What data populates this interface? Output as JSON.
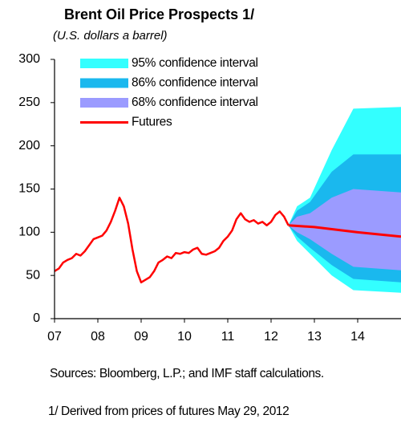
{
  "chart_data": {
    "type": "line",
    "title": "Brent Oil Price Prospects  1/",
    "subtitle": "(U.S. dollars a barrel)",
    "xlim": [
      2007,
      2015
    ],
    "xticks": [
      {
        "value": 2007,
        "label": "07"
      },
      {
        "value": 2008,
        "label": "08"
      },
      {
        "value": 2009,
        "label": "09"
      },
      {
        "value": 2010,
        "label": "10"
      },
      {
        "value": 2011,
        "label": "11"
      },
      {
        "value": 2012,
        "label": "12"
      },
      {
        "value": 2013,
        "label": "13"
      },
      {
        "value": 2014,
        "label": "14"
      }
    ],
    "ylim": [
      0,
      300
    ],
    "yticks": [
      0,
      50,
      100,
      150,
      200,
      250,
      300
    ],
    "grid": false,
    "legend": "upper left",
    "bands": [
      {
        "name": "95% confidence interval",
        "color": "#33ffff",
        "x": [
          2012.4,
          2012.6,
          2012.9,
          2013.4,
          2013.9,
          2015
        ],
        "upper": [
          108,
          130,
          140,
          195,
          243,
          245
        ],
        "lower": [
          108,
          90,
          75,
          50,
          33,
          30
        ]
      },
      {
        "name": "86% confidence interval",
        "color": "#1ab8ee",
        "x": [
          2012.4,
          2012.6,
          2012.9,
          2013.4,
          2013.9,
          2015
        ],
        "upper": [
          108,
          125,
          135,
          170,
          190,
          190
        ],
        "lower": [
          108,
          95,
          82,
          62,
          46,
          42
        ]
      },
      {
        "name": "68% confidence interval",
        "color": "#9b9bff",
        "x": [
          2012.4,
          2012.6,
          2012.9,
          2013.4,
          2013.9,
          2015
        ],
        "upper": [
          108,
          118,
          122,
          140,
          150,
          146
        ],
        "lower": [
          108,
          100,
          92,
          75,
          60,
          56
        ]
      }
    ],
    "series": [
      {
        "name": "Futures",
        "color": "#ff0000",
        "x": [
          2012.4,
          2013,
          2014,
          2015
        ],
        "values": [
          108,
          106,
          100,
          95
        ]
      }
    ],
    "history": {
      "color": "#ff0000",
      "x": [
        2007.0,
        2007.1,
        2007.2,
        2007.3,
        2007.4,
        2007.5,
        2007.6,
        2007.7,
        2007.8,
        2007.9,
        2008.0,
        2008.1,
        2008.2,
        2008.3,
        2008.4,
        2008.5,
        2008.6,
        2008.7,
        2008.8,
        2008.9,
        2009.0,
        2009.1,
        2009.2,
        2009.3,
        2009.4,
        2009.5,
        2009.6,
        2009.7,
        2009.8,
        2009.9,
        2010.0,
        2010.1,
        2010.2,
        2010.3,
        2010.4,
        2010.5,
        2010.6,
        2010.7,
        2010.8,
        2010.9,
        2011.0,
        2011.1,
        2011.2,
        2011.3,
        2011.4,
        2011.5,
        2011.6,
        2011.7,
        2011.8,
        2011.9,
        2012.0,
        2012.1,
        2012.2,
        2012.3,
        2012.4
      ],
      "values": [
        55,
        58,
        65,
        68,
        70,
        75,
        73,
        78,
        85,
        92,
        94,
        96,
        102,
        112,
        125,
        140,
        130,
        110,
        80,
        55,
        42,
        45,
        48,
        55,
        65,
        68,
        72,
        70,
        76,
        75,
        77,
        76,
        80,
        82,
        75,
        74,
        76,
        78,
        82,
        90,
        95,
        102,
        115,
        122,
        115,
        112,
        114,
        110,
        112,
        108,
        112,
        120,
        124,
        118,
        108
      ]
    },
    "notes": [
      "Sources: Bloomberg, L.P.; and IMF staff calculations.",
      "1/ Derived from prices of futures May 29, 2012"
    ]
  }
}
